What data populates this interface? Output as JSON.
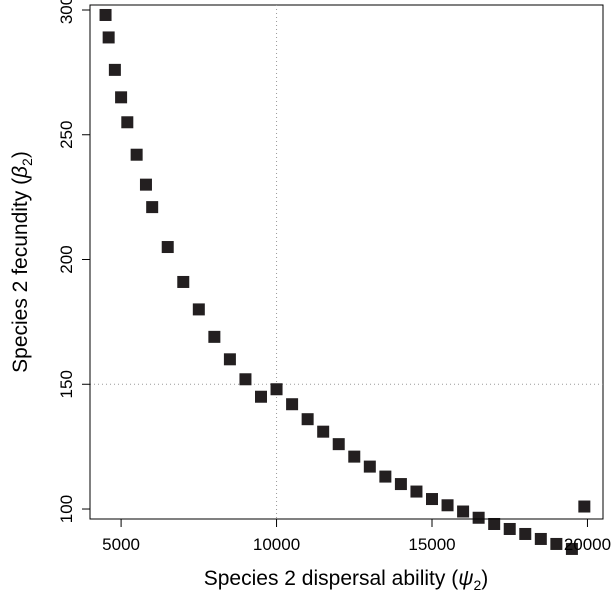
{
  "chart_data": {
    "type": "scatter",
    "title": "",
    "xlabel": {
      "prefix": "Species 2 dispersal ability (",
      "symbol": "ψ",
      "sub": "2",
      "suffix": ")"
    },
    "ylabel": {
      "prefix": "Species 2 fecundity (",
      "symbol": "β",
      "sub": "2",
      "suffix": ")"
    },
    "xlim": [
      4000,
      20500
    ],
    "ylim": [
      96,
      302
    ],
    "xticks": [
      5000,
      10000,
      15000,
      20000
    ],
    "yticks": [
      100,
      150,
      200,
      250,
      300
    ],
    "xtick_labels": [
      "5000",
      "10000",
      "15000",
      "20000"
    ],
    "ytick_labels": [
      "100",
      "150",
      "200",
      "250",
      "300"
    ],
    "reference_lines": {
      "x": 10000,
      "y": 150
    },
    "grid": false,
    "marker": "square",
    "marker_color": "#231f20",
    "series": [
      {
        "x": [
          4500,
          4600,
          4800,
          5000,
          5200,
          5500,
          5800,
          6000,
          6500,
          7000,
          7500,
          8000,
          8500,
          9000,
          9500,
          10000,
          10500,
          11000,
          11500,
          12000,
          12500,
          13000,
          13500,
          14000,
          14500,
          15000,
          15500,
          16000,
          16500,
          17000,
          17500,
          18000,
          18500,
          19000,
          19500,
          19900
        ],
        "y": [
          298,
          289,
          276,
          265,
          255,
          242,
          230,
          221,
          205,
          191,
          180,
          169,
          160,
          152,
          145,
          148,
          142,
          136,
          131,
          126,
          121,
          117,
          113,
          110,
          107,
          104,
          101.5,
          99,
          96.5,
          94,
          92,
          90,
          88,
          86,
          84,
          101
        ]
      }
    ]
  }
}
